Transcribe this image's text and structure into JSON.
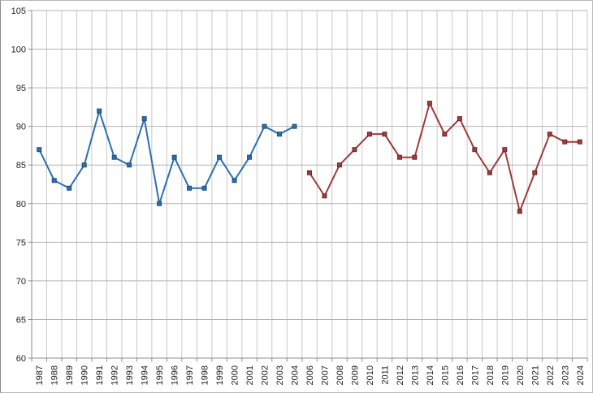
{
  "chart_data": {
    "type": "line",
    "title": "",
    "xlabel": "",
    "ylabel": "",
    "ylim": [
      60,
      105
    ],
    "y_ticks": [
      60,
      65,
      70,
      75,
      80,
      85,
      90,
      95,
      100,
      105
    ],
    "grid": "both",
    "legend": "none",
    "categories": [
      "1987",
      "1988",
      "1989",
      "1990",
      "1991",
      "1992",
      "1993",
      "1994",
      "1995",
      "1996",
      "1997",
      "1998",
      "1999",
      "2000",
      "2001",
      "2002",
      "2003",
      "2004",
      "2006",
      "2007",
      "2008",
      "2009",
      "2010",
      "2011",
      "2012",
      "2013",
      "2014",
      "2015",
      "2016",
      "2017",
      "2018",
      "2019",
      "2020",
      "2021",
      "2022",
      "2023",
      "2024"
    ],
    "series": [
      {
        "id": "series-blue",
        "start_index": 0,
        "values": [
          87,
          83,
          82,
          85,
          92,
          86,
          85,
          91,
          80,
          86,
          82,
          82,
          86,
          83,
          86,
          90,
          89,
          90
        ],
        "line_color": "#2E6FAE",
        "marker_fill": "#2E6FAE",
        "marker_stroke": "#1D4E79"
      },
      {
        "id": "series-red",
        "start_index": 18,
        "values": [
          84,
          81,
          85,
          87,
          89,
          89,
          86,
          86,
          93,
          89,
          91,
          87,
          84,
          87,
          79,
          84,
          89,
          88,
          88
        ],
        "line_color": "#9E3B3B",
        "marker_fill": "#A03C3C",
        "marker_stroke": "#6E2627"
      }
    ]
  },
  "colors": {
    "background": "#FFFFFF",
    "grid_vertical": "#C9C9C9",
    "grid_horizontal": "#B3B3B3",
    "axis": "#8E8E8E",
    "tick_label": "#1F1F1F",
    "frame_border": "#B9B9B9"
  }
}
